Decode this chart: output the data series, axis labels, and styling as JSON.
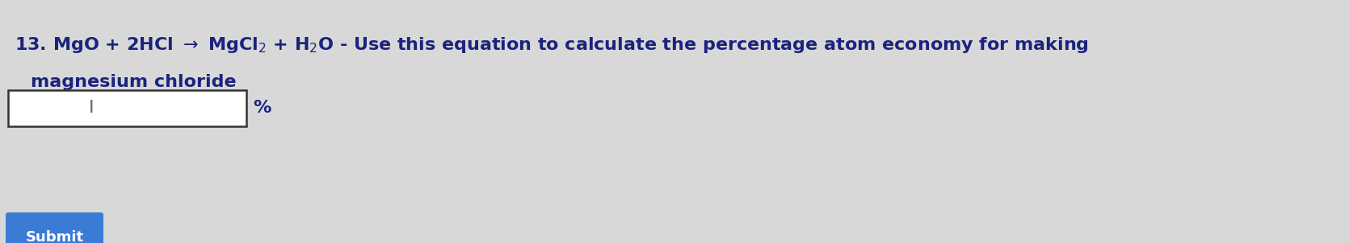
{
  "background_color": "#d8d8d8",
  "line1": "13. MgO + 2HCl $\\rightarrow$ MgCl$_2$ + H$_2$O - Use this equation to calculate the percentage atom economy for making",
  "line2": "magnesium chloride",
  "percent_label": "%",
  "submit_label": "Submit",
  "text_color": "#1a237e",
  "submit_bg": "#3a7bd5",
  "submit_text_color": "#ffffff",
  "main_fontsize": 16,
  "submit_fontsize": 13
}
